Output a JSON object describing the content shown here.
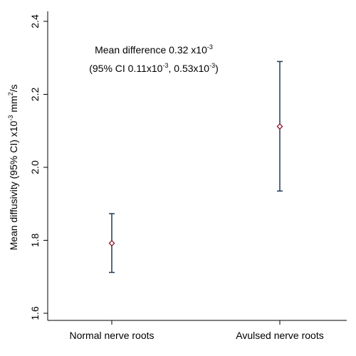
{
  "chart_data": {
    "type": "scatter",
    "plot_style": "mean with 95% CI error bars",
    "categories": [
      "Normal nerve roots",
      "Avulsed nerve roots"
    ],
    "means": [
      1.792,
      2.112
    ],
    "ci_lower": [
      1.712,
      1.935
    ],
    "ci_upper": [
      1.873,
      2.29
    ],
    "ylim": [
      1.6,
      2.4
    ],
    "yticks": [
      1.6,
      1.8,
      2.0,
      2.2,
      2.4
    ],
    "ytick_labels": [
      "1.6",
      "1.8",
      "2.0",
      "2.2",
      "2.4"
    ],
    "ylabel": {
      "main": "Mean diffusivity (95% CI) x10",
      "sup1": "-3",
      "unit": " mm",
      "sup2": "2",
      "tail": "/s"
    },
    "xlabel": "",
    "grid": false,
    "marker": "diamond",
    "marker_color": "#8b1a2b",
    "errorbar_color": "#1f3b57",
    "annotation": {
      "line1": {
        "text": "Mean difference 0.32 x10",
        "sup": "-3"
      },
      "line2": {
        "p1": "(95% CI 0.11x10",
        "s1": "-3",
        "p2": ", 0.53x10",
        "s2": "-3",
        "p3": ")"
      }
    }
  }
}
